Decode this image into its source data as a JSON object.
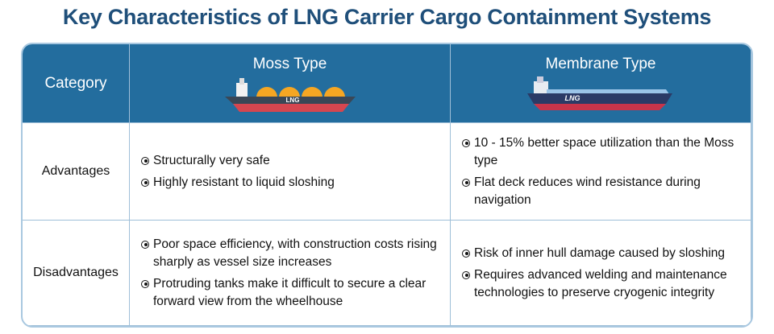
{
  "title": "Key Characteristics of LNG Carrier Cargo Containment Systems",
  "table": {
    "header": [
      "Category",
      "Moss Type",
      "Membrane Type"
    ],
    "ship_labels": [
      "LNG",
      "LNG"
    ],
    "rows": [
      {
        "category": "Advantages",
        "moss": [
          "Structurally very safe",
          "Highly resistant to liquid sloshing"
        ],
        "membrane": [
          "10 - 15% better space utilization than the Moss type",
          "Flat deck reduces wind resistance during navigation"
        ]
      },
      {
        "category": "Disadvantages",
        "moss": [
          "Poor space efficiency, with construction costs rising sharply as vessel size increases",
          "Protruding tanks make it difficult to secure a clear forward view from the wheelhouse"
        ],
        "membrane": [
          "Risk of inner hull damage caused by sloshing",
          "Requires advanced welding and maintenance technologies to preserve cryogenic integrity"
        ]
      }
    ]
  }
}
